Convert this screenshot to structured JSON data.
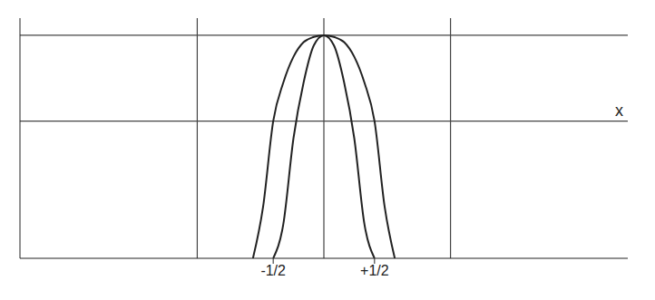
{
  "chart_data": {
    "type": "line",
    "x_label": "x",
    "x": [
      -0.7,
      -0.6,
      -0.5,
      -0.4,
      -0.3,
      -0.2,
      -0.1,
      0,
      0.1,
      0.2,
      0.3,
      0.4,
      0.5,
      0.6,
      0.7
    ],
    "series": [
      {
        "color": "#222222",
        "values": [
          -1.6,
          -1.0,
          0,
          0.45,
          0.75,
          0.92,
          0.98,
          1,
          0.98,
          0.92,
          0.75,
          0.45,
          0,
          -1.0,
          -1.6
        ]
      },
      {
        "color": "#222222",
        "values": [
          null,
          null,
          -1.6,
          -1.2,
          -0.2,
          0.45,
          0.88,
          1,
          0.88,
          0.45,
          -0.2,
          -1.2,
          -1.6,
          null,
          null
        ]
      }
    ],
    "xlim": [
      -3,
      3
    ],
    "ylim": [
      -1.6,
      1.2
    ],
    "xticks": [
      {
        "value": -0.5,
        "label": "-1/2"
      },
      {
        "value": 0.5,
        "label": "+1/2"
      }
    ],
    "yticks": [],
    "xlines": [
      -1.25,
      0,
      1.25
    ],
    "ylines": [
      0,
      1
    ],
    "tick_labels": "x",
    "grid": false
  }
}
